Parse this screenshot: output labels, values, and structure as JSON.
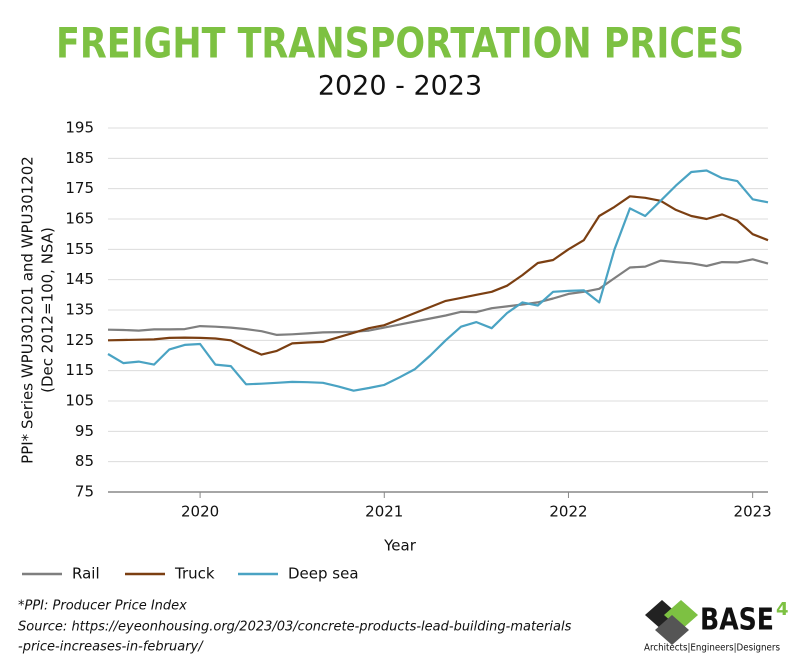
{
  "chart_data": {
    "type": "line",
    "title": "FREIGHT TRANSPORTATION PRICES",
    "subtitle": "2020 - 2023",
    "y_label": [
      "PPI* Series WPU301201 and WPU301202",
      "(Dec 2012=100, NSA)"
    ],
    "x_label": "Year",
    "categories": [
      null,
      null,
      null,
      null,
      null,
      null,
      "2020",
      null,
      null,
      null,
      null,
      null,
      null,
      null,
      null,
      null,
      null,
      null,
      "2021",
      null,
      null,
      null,
      null,
      null,
      null,
      null,
      null,
      null,
      null,
      null,
      "2022",
      null,
      null,
      null,
      null,
      null,
      null,
      null,
      null,
      null,
      null,
      null,
      "2023",
      null
    ],
    "series": [
      {
        "name": "Rail",
        "color": "#7f7f7f",
        "values": [
          128.5,
          128.4,
          128.2,
          128.6,
          128.6,
          128.7,
          129.7,
          129.5,
          129.2,
          128.7,
          128.0,
          126.8,
          127.0,
          127.3,
          127.6,
          127.7,
          127.8,
          128.2,
          129.2,
          130.2,
          131.2,
          132.2,
          133.2,
          134.4,
          134.3,
          135.6,
          136.2,
          136.8,
          137.5,
          138.8,
          140.3,
          141.0,
          142.0,
          145.5,
          149.0,
          149.3,
          151.3,
          150.8,
          150.4,
          149.5,
          150.8,
          150.7,
          151.7,
          150.3
        ]
      },
      {
        "name": "Truck",
        "color": "#7b3f12",
        "values": [
          125.0,
          125.1,
          125.2,
          125.3,
          125.8,
          125.9,
          125.8,
          125.6,
          125.0,
          122.5,
          120.3,
          121.5,
          124.0,
          124.3,
          124.5,
          126.0,
          127.5,
          129.0,
          130.0,
          132.0,
          134.0,
          136.0,
          138.0,
          139.0,
          140.0,
          141.0,
          143.0,
          146.5,
          150.5,
          151.5,
          155.0,
          158.0,
          166.0,
          169.0,
          172.5,
          172.0,
          171.0,
          168.0,
          166.0,
          165.0,
          166.5,
          164.5,
          160.0,
          158.0
        ]
      },
      {
        "name": "Deep sea",
        "color": "#4aa3c3",
        "values": [
          120.5,
          117.5,
          118.0,
          117.0,
          122.0,
          123.5,
          123.8,
          117.0,
          116.5,
          110.5,
          110.7,
          111.0,
          111.3,
          111.2,
          111.0,
          109.8,
          108.4,
          109.3,
          110.3,
          112.8,
          115.5,
          120.0,
          125.0,
          129.5,
          131.0,
          129.0,
          134.0,
          137.5,
          136.5,
          141.0,
          141.3,
          141.5,
          137.5,
          155.0,
          168.5,
          166.0,
          171.0,
          176.0,
          180.5,
          181.0,
          178.5,
          177.5,
          171.5,
          170.5
        ]
      }
    ],
    "ylim": [
      75,
      195
    ],
    "yticks": [
      75,
      85,
      95,
      105,
      115,
      125,
      135,
      145,
      155,
      165,
      175,
      185,
      195
    ],
    "grid": true,
    "legend": "bottom",
    "footnotes": [
      "*PPI: Producer Price Index",
      "Source: https://eyeonhousing.org/2023/03/concrete-products-lead-building-materials",
      "-price-increases-in-february/"
    ],
    "logo": {
      "name": "BASE",
      "superscript": "4",
      "tagline": "Architects|Engineers|Designers"
    }
  }
}
